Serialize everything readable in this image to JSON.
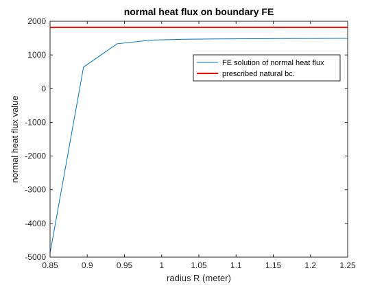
{
  "chart_data": {
    "type": "line",
    "title": "normal heat flux on boundary FE",
    "xlabel": "radius R (meter)",
    "ylabel": "normal heat flux value",
    "xlim": [
      0.85,
      1.25
    ],
    "ylim": [
      -5000,
      2000
    ],
    "xticks": [
      0.85,
      0.9,
      0.95,
      1,
      1.05,
      1.1,
      1.15,
      1.2,
      1.25
    ],
    "xtick_labels": [
      "0.85",
      "0.9",
      "0.95",
      "1",
      "1.05",
      "1.1",
      "1.15",
      "1.2",
      "1.25"
    ],
    "yticks": [
      -5000,
      -4000,
      -3000,
      -2000,
      -1000,
      0,
      1000,
      2000
    ],
    "ytick_labels": [
      "-5000",
      "-4000",
      "-3000",
      "-2000",
      "-1000",
      "0",
      "1000",
      "2000"
    ],
    "grid": false,
    "legend_position": "top-right",
    "series": [
      {
        "name": "FE solution of normal heat flux",
        "color": "#0072BD",
        "x": [
          0.85,
          0.895,
          0.94,
          0.985,
          1.03,
          1.075,
          1.12,
          1.165,
          1.21,
          1.25
        ],
        "y": [
          -4880,
          640,
          1330,
          1440,
          1465,
          1475,
          1480,
          1485,
          1490,
          1495
        ]
      },
      {
        "name": "prescribed natural bc.",
        "color": "#FF0000",
        "x": [
          0.85,
          1.25
        ],
        "y": [
          1820,
          1820
        ]
      }
    ]
  }
}
